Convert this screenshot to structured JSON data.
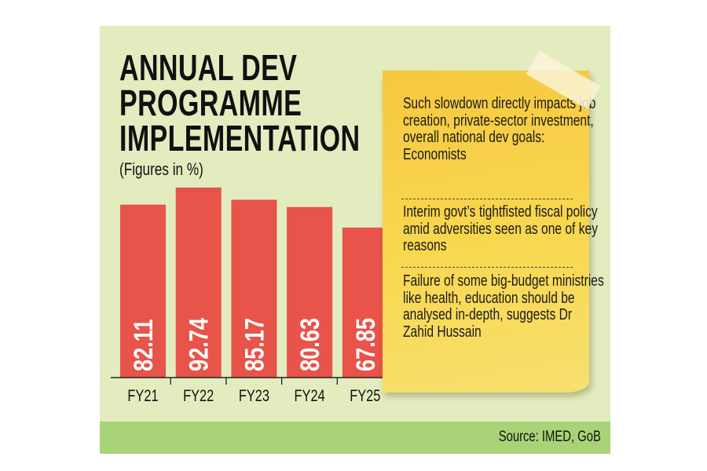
{
  "title_lines": [
    "ANNUAL DEV",
    "PROGRAMME",
    "IMPLEMENTATION"
  ],
  "subtitle": "(Figures in %)",
  "chart_data": {
    "type": "bar",
    "title": "ANNUAL DEV PROGRAMME IMPLEMENTATION",
    "subtitle": "(Figures in %)",
    "categories": [
      "FY21",
      "FY22",
      "FY23",
      "FY24",
      "FY25"
    ],
    "values": [
      82.11,
      92.74,
      85.17,
      80.63,
      67.85
    ],
    "value_labels": [
      "82.11",
      "92.74",
      "85.17",
      "80.63",
      "67.85"
    ],
    "bar_color": "#e8534a",
    "grid": false,
    "xlabel": "",
    "ylabel": ""
  },
  "note": {
    "points": [
      "Such slowdown directly impacts job creation, private-sector investment, overall national dev goals: Economists",
      "Interim govt’s tightfisted fiscal policy amid adversities seen as one of key reasons",
      "Failure of some big-budget ministries like health, education should be analysed in-depth, suggests Dr Zahid Hussain"
    ],
    "color": "#f7d54a"
  },
  "source": "Source: IMED, GoB",
  "colors": {
    "background": "#e3ecbf",
    "footer": "#a9d377"
  }
}
